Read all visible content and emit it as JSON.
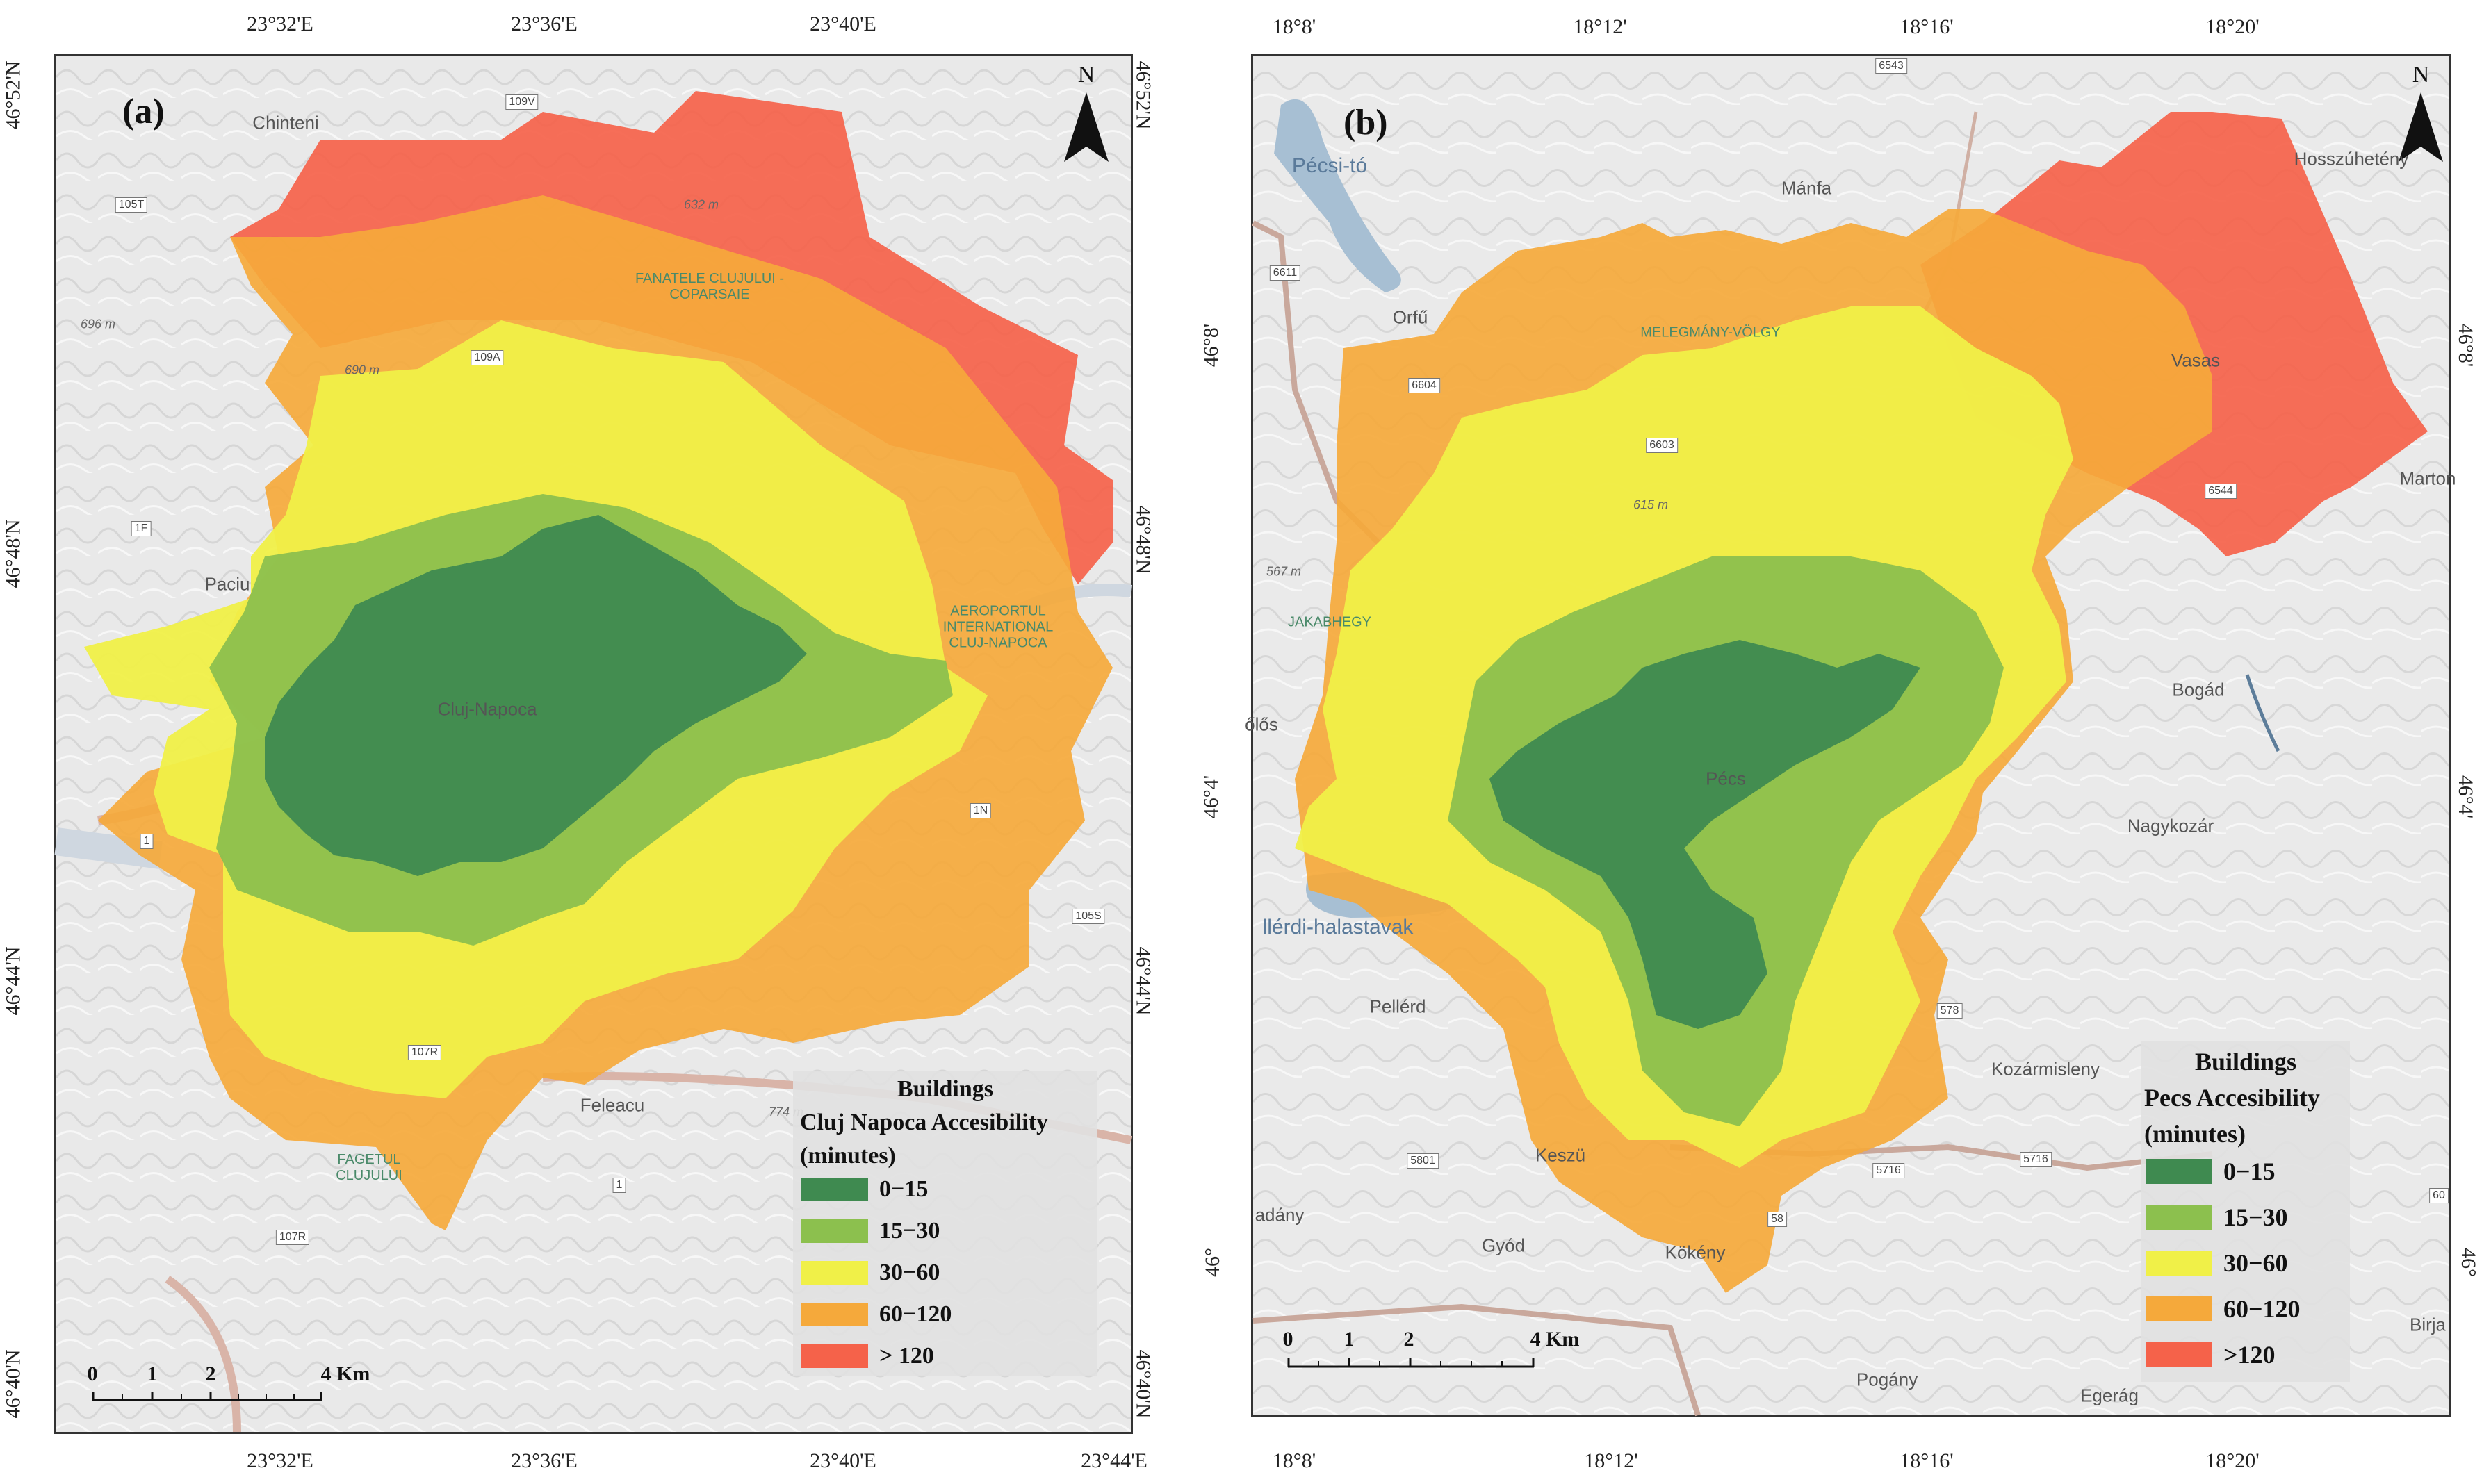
{
  "panel_a": {
    "label": "(a)",
    "north": "N",
    "ticks_top": [
      "23°32'E",
      "23°36'E",
      "23°40'E"
    ],
    "ticks_bottom": [
      "23°32'E",
      "23°36'E",
      "23°40'E",
      "23°44'E"
    ],
    "ticks_left": [
      "46°52'N",
      "46°48'N",
      "46°44'N",
      "46°40'N"
    ],
    "ticks_right": [
      "46°52'N",
      "46°48'N",
      "46°44'N",
      "46°40'N"
    ],
    "places": [
      "Chinteni",
      "Paciu",
      "Cluj-Napoca",
      "Feleacu",
      "FANATELE CLUJULUI - COPARSAIE",
      "AEROPORTUL INTERNATIONAL CLUJ-NAPOCA",
      "FAGETUL CLUJULUI"
    ],
    "road_shields": [
      "109V",
      "105T",
      "109A",
      "1F",
      "1",
      "107R",
      "107R",
      "105S",
      "1N",
      "1"
    ],
    "elevations": [
      "632 m",
      "696 m",
      "690 m",
      "774 m"
    ],
    "legend": {
      "title1": "Buildings",
      "title2": "Cluj Napoca Accesibility",
      "title3": "(minutes)",
      "items": [
        {
          "label": "0−15",
          "color": "#3f8a50"
        },
        {
          "label": "15−30",
          "color": "#8cc04e"
        },
        {
          "label": "30−60",
          "color": "#f0f048"
        },
        {
          "label": "60−120",
          "color": "#f5a93b"
        },
        {
          "label": "> 120",
          "color": "#f5624a"
        }
      ]
    },
    "scale": {
      "labels": [
        "0",
        "1",
        "2",
        "4 Km"
      ]
    }
  },
  "panel_b": {
    "label": "(b)",
    "north": "N",
    "ticks_top": [
      "18°8'",
      "18°12'",
      "18°16'",
      "18°20'"
    ],
    "ticks_bottom": [
      "18°8'",
      "18°12'",
      "18°16'",
      "18°20'"
    ],
    "ticks_left": [
      "46°8'",
      "46°4'",
      "46°"
    ],
    "ticks_right": [
      "46°8'",
      "46°4'",
      "46°"
    ],
    "places": [
      "Pécsi-tó",
      "Mánfa",
      "Hosszúhetény",
      "Orfű",
      "MELEGMÁNY-VÖLGY",
      "Vasas",
      "Marton",
      "JAKABHEGY",
      "Bogád",
      "őlős",
      "Pécs",
      "Nagykozár",
      "llérdi-halastavak",
      "Pellérd",
      "Kozármisleny",
      "Keszü",
      "adány",
      "Gyód",
      "Kökény",
      "Pogány",
      "Egerág",
      "Birja"
    ],
    "road_shields": [
      "6543",
      "6611",
      "6604",
      "6603",
      "6544",
      "5801",
      "5716",
      "5716",
      "578",
      "58",
      "60"
    ],
    "elevations": [
      "567 m",
      "615 m"
    ],
    "legend": {
      "title1": "Buildings",
      "title2": "Pecs Accesibility",
      "title3": "(minutes)",
      "items": [
        {
          "label": "0−15",
          "color": "#3f8a50"
        },
        {
          "label": "15−30",
          "color": "#8cc04e"
        },
        {
          "label": "30−60",
          "color": "#f0f048"
        },
        {
          "label": "60−120",
          "color": "#f5a93b"
        },
        {
          "label": ">120",
          "color": "#f5624a"
        }
      ]
    },
    "scale": {
      "labels": [
        "0",
        "1",
        "2",
        "4 Km"
      ]
    }
  }
}
